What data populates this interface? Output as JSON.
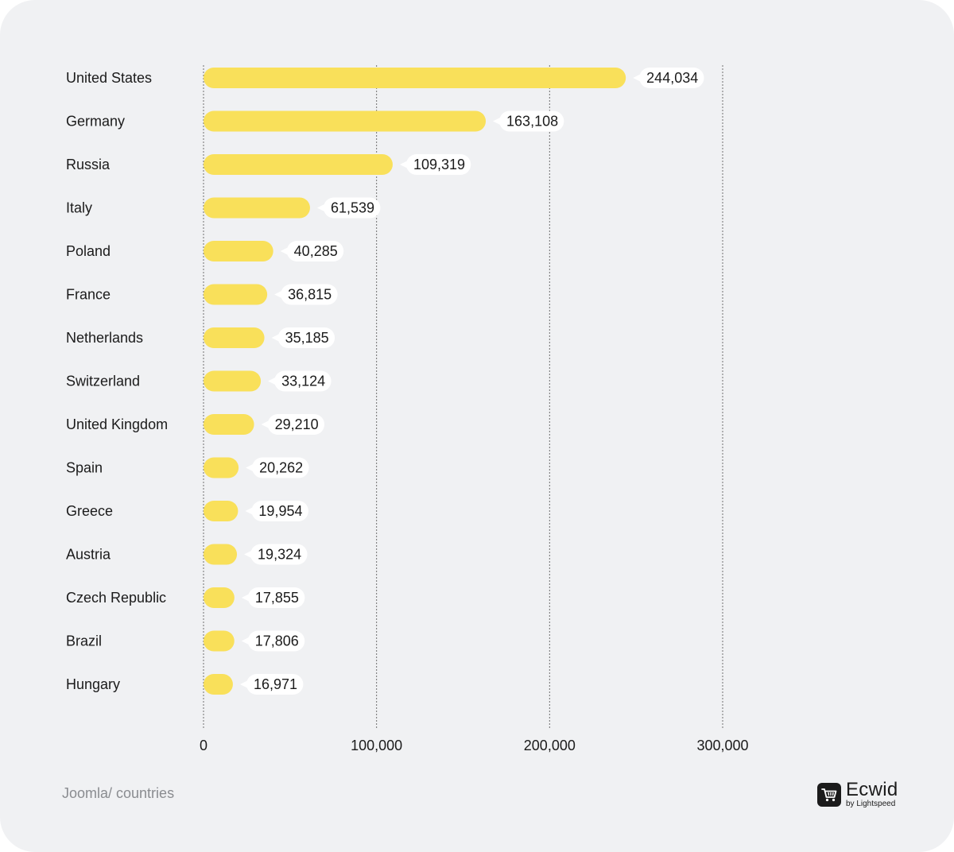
{
  "chart_data": {
    "type": "bar",
    "orientation": "horizontal",
    "categories": [
      "United States",
      "Germany",
      "Russia",
      "Italy",
      "Poland",
      "France",
      "Netherlands",
      "Switzerland",
      "United Kingdom",
      "Spain",
      "Greece",
      "Austria",
      "Czech Republic",
      "Brazil",
      "Hungary"
    ],
    "values": [
      244034,
      163108,
      109319,
      61539,
      40285,
      36815,
      35185,
      33124,
      29210,
      20262,
      19954,
      19324,
      17855,
      17806,
      16971
    ],
    "value_labels": [
      "244,034",
      "163,108",
      "109,319",
      "61,539",
      "40,285",
      "36,815",
      "35,185",
      "33,124",
      "29,210",
      "20,262",
      "19,954",
      "19,324",
      "17,855",
      "17,806",
      "16,971"
    ],
    "xticks": [
      0,
      100000,
      200000,
      300000
    ],
    "xtick_labels": [
      "0",
      "100,000",
      "200,000",
      "300,000"
    ],
    "xlim": [
      0,
      300000
    ],
    "grid": true,
    "bar_color": "#f9e05a"
  },
  "footer": {
    "source": "Joomla/ countries",
    "brand_name": "Ecwid",
    "brand_sub": "by Lightspeed",
    "brand_icon": "cart-icon"
  }
}
